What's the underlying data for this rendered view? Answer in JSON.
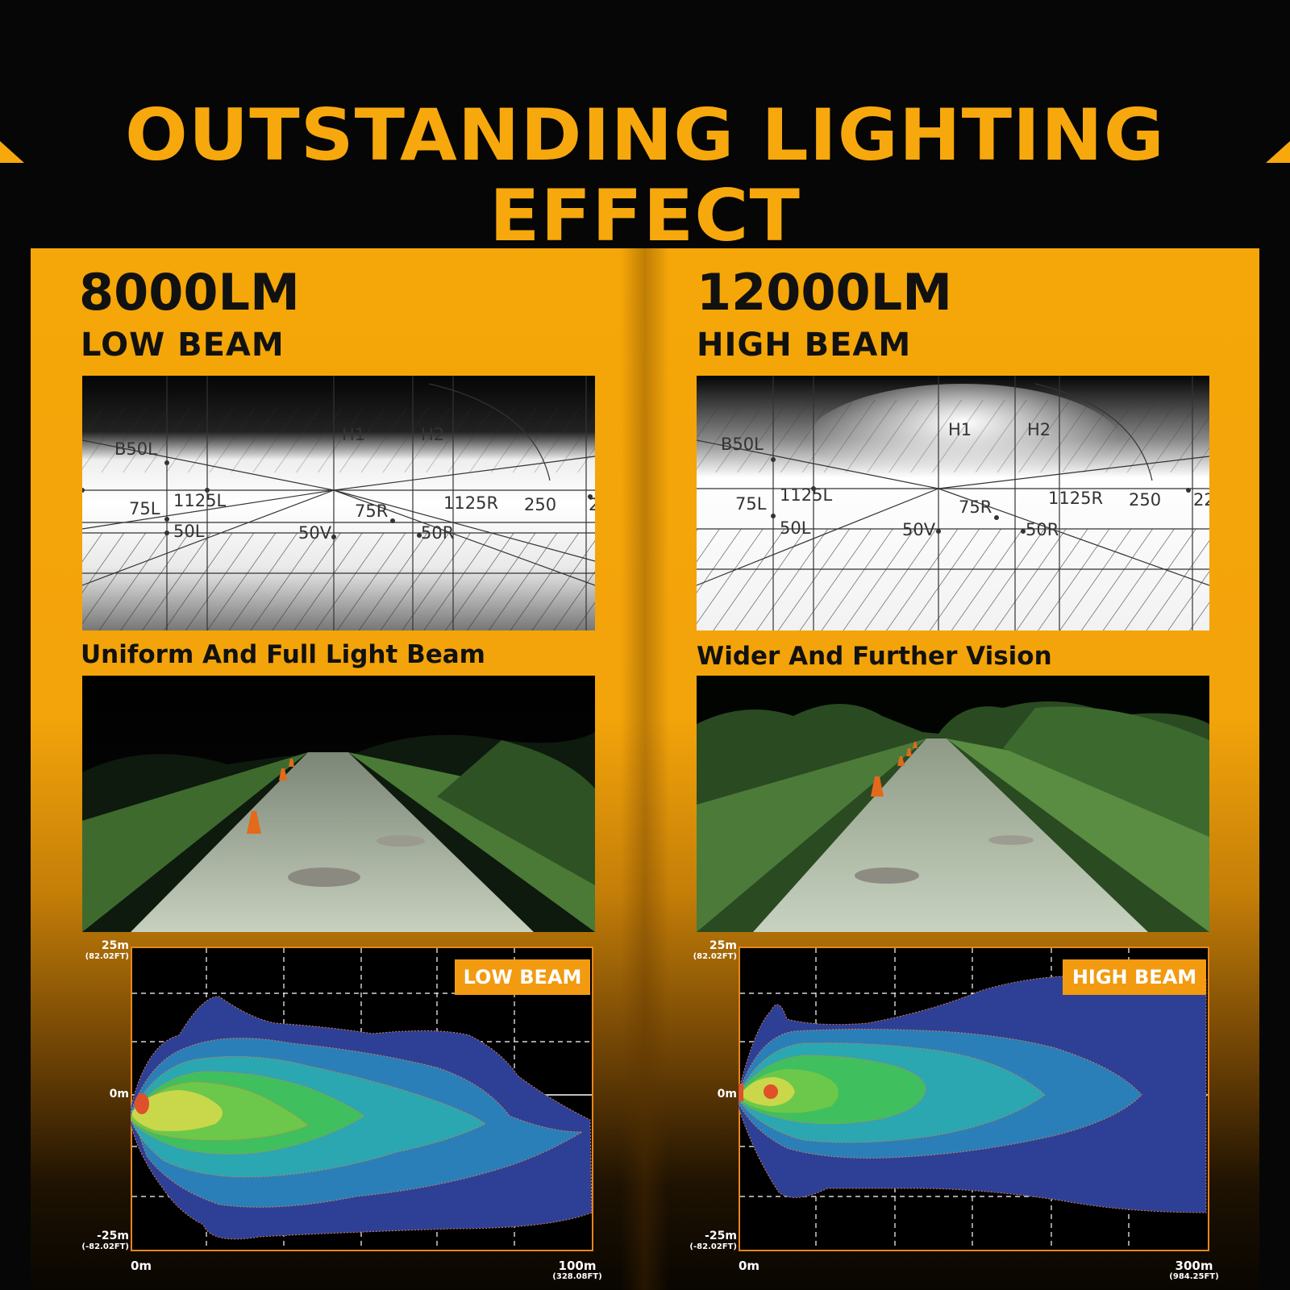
{
  "header": {
    "title": "OUTSTANDING LIGHTING EFFECT"
  },
  "colors": {
    "accent": "#f7a80d",
    "panel": "#f5a608",
    "badge": "#f29a10",
    "chart_bg": "#000000"
  },
  "low": {
    "lumens": "8000LM",
    "beam": "LOW BEAM",
    "caption": "Uniform And Full Light Beam",
    "pattern_labels": [
      "B50L",
      "H1",
      "H2",
      "75L",
      "1125L",
      "50L",
      "50V",
      "75R",
      "50R",
      "1125R",
      "250",
      "2"
    ],
    "chart": {
      "badge": "LOW BEAM",
      "y_top": "25m",
      "y_top_ft": "(82.02FT)",
      "y_mid": "0m",
      "y_bot": "-25m",
      "y_bot_ft": "(-82.02FT)",
      "x_start": "0m",
      "x_end": "100m",
      "x_end_ft": "(328.08FT)"
    }
  },
  "high": {
    "lumens": "12000LM",
    "beam": "HIGH BEAM",
    "caption": "Wider And Further Vision",
    "pattern_labels": [
      "B50L",
      "H1",
      "H2",
      "75L",
      "1125L",
      "50L",
      "50V",
      "75R",
      "50R",
      "1125R",
      "250",
      "22"
    ],
    "chart": {
      "badge": "HIGH BEAM",
      "y_top": "25m",
      "y_top_ft": "(82.02FT)",
      "y_mid": "0m",
      "y_bot": "-25m",
      "y_bot_ft": "(-82.02FT)",
      "x_start": "0m",
      "x_end": "300m",
      "x_end_ft": "(984.25FT)"
    }
  }
}
